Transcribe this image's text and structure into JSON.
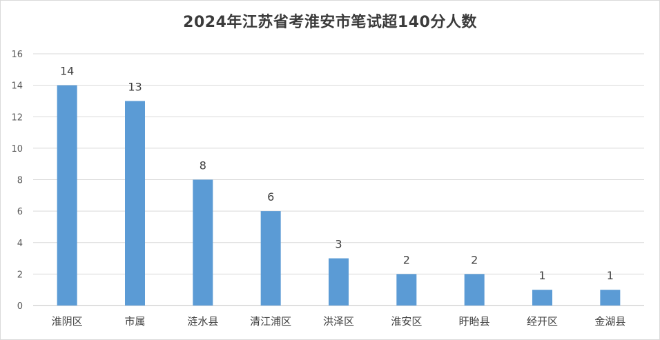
{
  "chart_data": {
    "type": "bar",
    "title": "2024年江苏省考淮安市笔试超140分人数",
    "categories": [
      "淮阴区",
      "市属",
      "涟水县",
      "清江浦区",
      "洪泽区",
      "淮安区",
      "盱眙县",
      "经开区",
      "金湖县"
    ],
    "values": [
      14,
      13,
      8,
      6,
      3,
      2,
      2,
      1,
      1
    ],
    "data_labels": [
      "14",
      "13",
      "8",
      "6",
      "3",
      "2",
      "2",
      "1",
      "1"
    ],
    "yticks": [
      "0",
      "2",
      "4",
      "6",
      "8",
      "10",
      "12",
      "14",
      "16"
    ],
    "ylim": [
      0,
      16
    ],
    "xlabel": "",
    "ylabel": "",
    "grid": true,
    "legend": "none",
    "bar_color": "#5b9bd5"
  }
}
